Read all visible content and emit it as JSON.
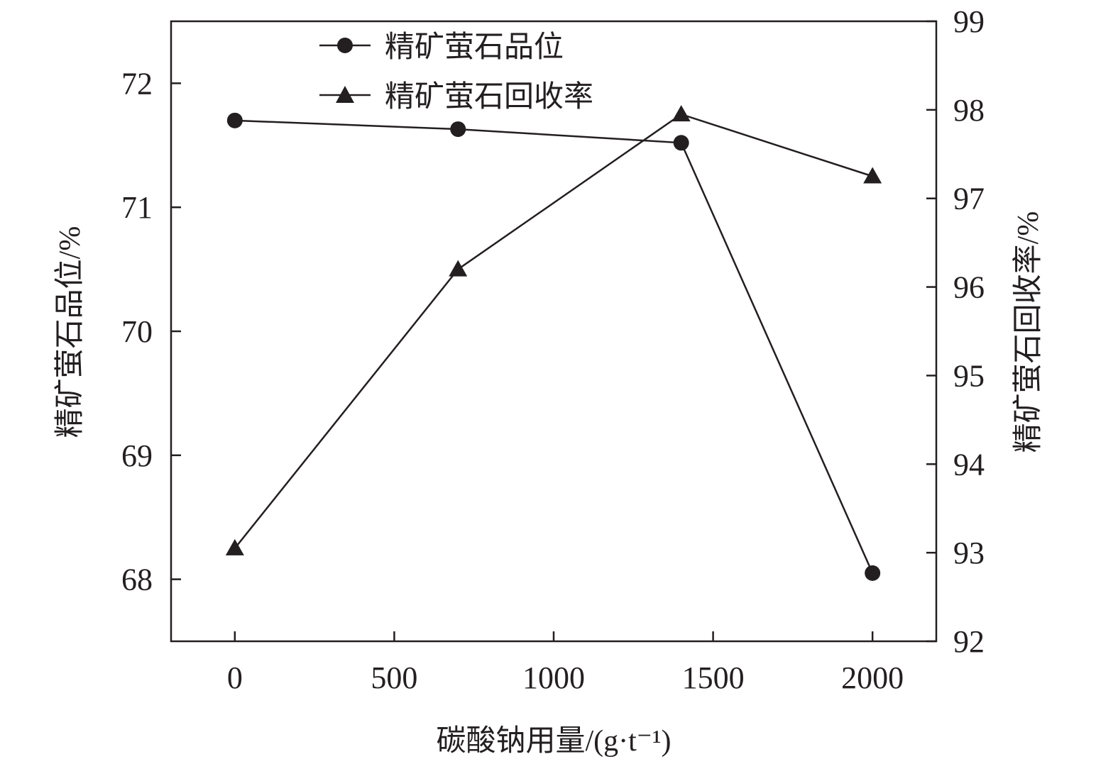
{
  "chart_data": {
    "type": "line",
    "x": [
      0,
      700,
      1400,
      2000
    ],
    "xlabel": "碳酸钠用量/(g·t⁻¹)",
    "xlim": [
      -200,
      2200
    ],
    "xticks": [
      0,
      500,
      1000,
      1500,
      2000
    ],
    "left_axis": {
      "label": "精矿萤石品位/%",
      "ylim": [
        67.5,
        72.5
      ],
      "ticks": [
        68,
        69,
        70,
        71,
        72
      ]
    },
    "right_axis": {
      "label": "精矿萤石回收率/%",
      "ylim": [
        92,
        99
      ],
      "ticks": [
        92,
        93,
        94,
        95,
        96,
        97,
        98,
        99
      ]
    },
    "series": [
      {
        "name": "精矿萤石品位",
        "axis": "left",
        "marker": "circle",
        "values": [
          71.7,
          71.63,
          71.52,
          68.05
        ]
      },
      {
        "name": "精矿萤石回收率",
        "axis": "right",
        "marker": "triangle",
        "values": [
          93.05,
          96.2,
          97.95,
          97.25
        ]
      }
    ],
    "legend_position": "top",
    "grid": false,
    "colors": {
      "line": "#231f20",
      "marker": "#231f20",
      "axis": "#231f20"
    }
  }
}
